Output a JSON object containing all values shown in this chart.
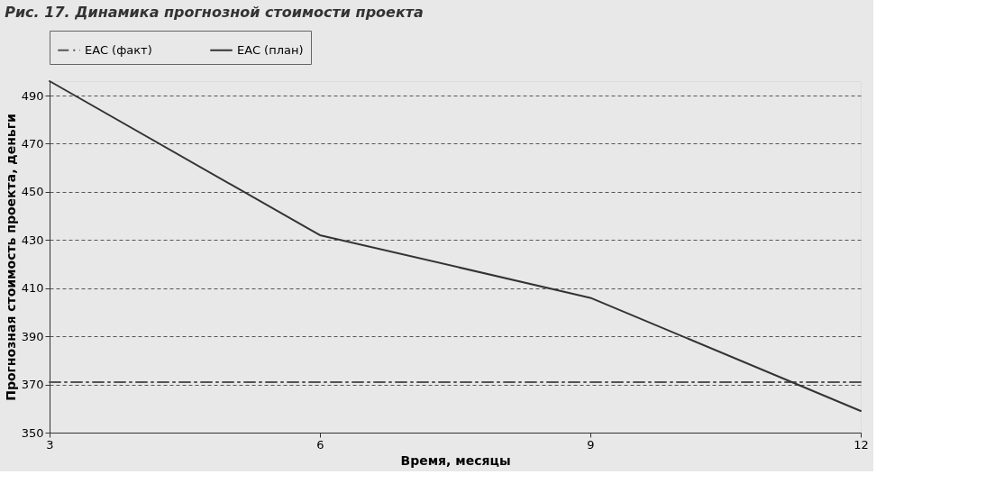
{
  "chart_data": {
    "type": "line",
    "title": "Рис. 17. Динамика прогнозной стоимости проекта",
    "xlabel": "Время, месяцы",
    "ylabel": "Прогнозная стоимость проекта, деньги",
    "series": [
      {
        "name": "EAC (факт)",
        "color": "#555555",
        "x": [
          3,
          6,
          9,
          12
        ],
        "values": [
          371,
          371,
          371,
          371
        ],
        "line_style": "dashdot"
      },
      {
        "name": "EAC (план)",
        "color": "#333333",
        "x": [
          3,
          6,
          9,
          12
        ],
        "values": [
          496,
          432,
          406,
          359
        ],
        "line_style": "solid"
      }
    ],
    "xlim": [
      3,
      12
    ],
    "xticks": [
      3,
      6,
      9,
      12
    ],
    "ylim": [
      350,
      496
    ],
    "yticks": [
      350,
      370,
      390,
      410,
      430,
      450,
      470,
      490
    ],
    "grid": "y",
    "legend": "top"
  }
}
